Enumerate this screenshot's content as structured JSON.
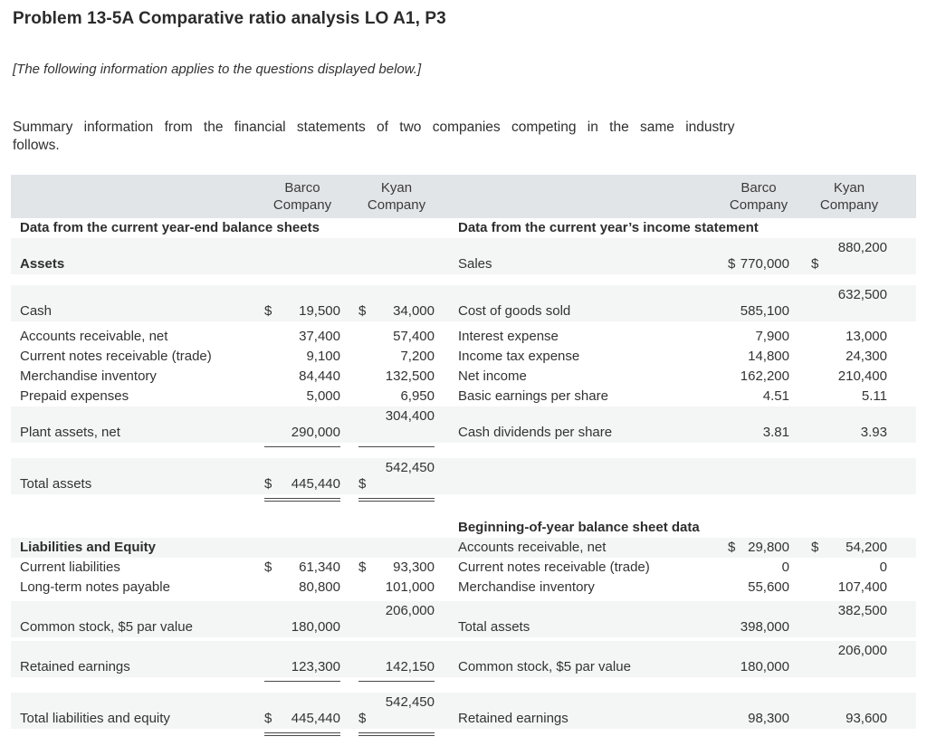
{
  "page": {
    "title": "Problem 13-5A Comparative ratio analysis LO A1, P3",
    "notice": "[The following information applies to the questions displayed below.]",
    "intro_lines": [
      "Summary information from the financial statements of two companies competing in the same industry",
      "follows."
    ]
  },
  "table": {
    "header": {
      "barco": "Barco Company",
      "kyan": "Kyan Company"
    },
    "bands": [
      {
        "type": "header"
      },
      {
        "type": "row",
        "bg": "white",
        "left": {
          "span": true,
          "label": "Data from the current year-end balance sheets"
        },
        "right": {
          "span": true,
          "label": "Data from the current year’s income statement"
        }
      },
      {
        "type": "row",
        "bg": "gray",
        "left": {
          "label": "Assets",
          "bold": true
        },
        "right": {
          "label": "Sales",
          "c1": {
            "d": "$",
            "v": "770,000"
          },
          "c2": {
            "d": "$",
            "v": "880,200",
            "raised": true
          }
        }
      },
      {
        "type": "gap",
        "h": 12
      },
      {
        "type": "row",
        "bg": "gray",
        "left": {
          "label": "Cash",
          "c1": {
            "d": "$",
            "v": "19,500"
          },
          "c2": {
            "d": "$",
            "v": "34,000"
          }
        },
        "right": {
          "label": "Cost of goods sold",
          "c1": {
            "v": "585,100"
          },
          "c2": {
            "v": "632,500",
            "raised": true
          }
        }
      },
      {
        "type": "gap",
        "h": 6
      },
      {
        "type": "row",
        "bg": "white",
        "left": {
          "label": "Accounts receivable, net",
          "c1": {
            "v": "37,400"
          },
          "c2": {
            "v": "57,400"
          }
        },
        "right": {
          "label": "Interest expense",
          "c1": {
            "v": "7,900"
          },
          "c2": {
            "v": "13,000"
          }
        }
      },
      {
        "type": "row",
        "bg": "white",
        "left": {
          "label": "Current notes receivable (trade)",
          "c1": {
            "v": "9,100"
          },
          "c2": {
            "v": "7,200"
          }
        },
        "right": {
          "label": "Income tax expense",
          "c1": {
            "v": "14,800"
          },
          "c2": {
            "v": "24,300"
          }
        }
      },
      {
        "type": "row",
        "bg": "white",
        "left": {
          "label": "Merchandise inventory",
          "c1": {
            "v": "84,440"
          },
          "c2": {
            "v": "132,500"
          }
        },
        "right": {
          "label": "Net income",
          "c1": {
            "v": "162,200"
          },
          "c2": {
            "v": "210,400"
          }
        }
      },
      {
        "type": "row",
        "bg": "white",
        "left": {
          "label": "Prepaid expenses",
          "c1": {
            "v": "5,000"
          },
          "c2": {
            "v": "6,950"
          }
        },
        "right": {
          "label": "Basic earnings per share",
          "c1": {
            "v": "4.51"
          },
          "c2": {
            "v": "5.11"
          }
        }
      },
      {
        "type": "row",
        "bg": "gray",
        "left": {
          "label": "Plant assets, net",
          "c1": {
            "v": "290,000"
          },
          "c2": {
            "v": "304,400",
            "raised": true
          }
        },
        "right": {
          "label": "Cash dividends per share",
          "c1": {
            "v": "3.81"
          },
          "c2": {
            "v": "3.93"
          }
        }
      },
      {
        "type": "rule",
        "side": "left",
        "double": false
      },
      {
        "type": "gap",
        "h": 8
      },
      {
        "type": "row",
        "bg": "gray",
        "left": {
          "label": "Total assets",
          "c1": {
            "d": "$",
            "v": "445,440"
          },
          "c2": {
            "d": "$",
            "v": "542,450",
            "raised": true
          }
        },
        "right": {}
      },
      {
        "type": "rule",
        "side": "left",
        "double": true
      },
      {
        "type": "gap",
        "h": 14
      },
      {
        "type": "row",
        "bg": "white",
        "left": {},
        "right": {
          "span": true,
          "label": "Beginning-of-year balance sheet data"
        }
      },
      {
        "type": "row",
        "bg": "gray",
        "left": {
          "label": "Liabilities and Equity",
          "bold": true
        },
        "right": {
          "label": "Accounts receivable, net",
          "c1": {
            "d": "$",
            "v": "29,800"
          },
          "c2": {
            "d": "$",
            "v": "54,200"
          }
        }
      },
      {
        "type": "row",
        "bg": "white",
        "left": {
          "label": "Current liabilities",
          "c1": {
            "d": "$",
            "v": "61,340"
          },
          "c2": {
            "d": "$",
            "v": "93,300"
          }
        },
        "right": {
          "label": "Current notes receivable (trade)",
          "c1": {
            "v": "0"
          },
          "c2": {
            "v": "0"
          }
        }
      },
      {
        "type": "row",
        "bg": "white",
        "left": {
          "label": "Long-term notes payable",
          "c1": {
            "v": "80,800"
          },
          "c2": {
            "v": "101,000"
          }
        },
        "right": {
          "label": "Merchandise inventory",
          "c1": {
            "v": "55,600"
          },
          "c2": {
            "v": "107,400"
          }
        }
      },
      {
        "type": "gap",
        "h": 4
      },
      {
        "type": "row",
        "bg": "gray",
        "left": {
          "label": "Common stock, $5 par value",
          "c1": {
            "v": "180,000"
          },
          "c2": {
            "v": "206,000",
            "raised": true
          }
        },
        "right": {
          "label": "Total assets",
          "c1": {
            "v": "398,000"
          },
          "c2": {
            "v": "382,500",
            "raised": true
          }
        }
      },
      {
        "type": "gap",
        "h": 4
      },
      {
        "type": "row",
        "bg": "gray",
        "left": {
          "label": "Retained earnings",
          "c1": {
            "v": "123,300"
          },
          "c2": {
            "v": "142,150"
          }
        },
        "right": {
          "label": "Common stock, $5 par value",
          "c1": {
            "v": "180,000"
          },
          "c2": {
            "v": "206,000",
            "raised": true
          }
        }
      },
      {
        "type": "rule",
        "side": "left",
        "double": false
      },
      {
        "type": "gap",
        "h": 8
      },
      {
        "type": "row",
        "bg": "gray",
        "left": {
          "label": "Total liabilities and equity",
          "c1": {
            "d": "$",
            "v": "445,440"
          },
          "c2": {
            "d": "$",
            "v": "542,450",
            "raised": true
          }
        },
        "right": {
          "label": "Retained earnings",
          "c1": {
            "v": "98,300"
          },
          "c2": {
            "v": "93,600"
          }
        }
      },
      {
        "type": "rule",
        "side": "left",
        "double": true
      },
      {
        "type": "gap",
        "h": 10
      }
    ]
  }
}
